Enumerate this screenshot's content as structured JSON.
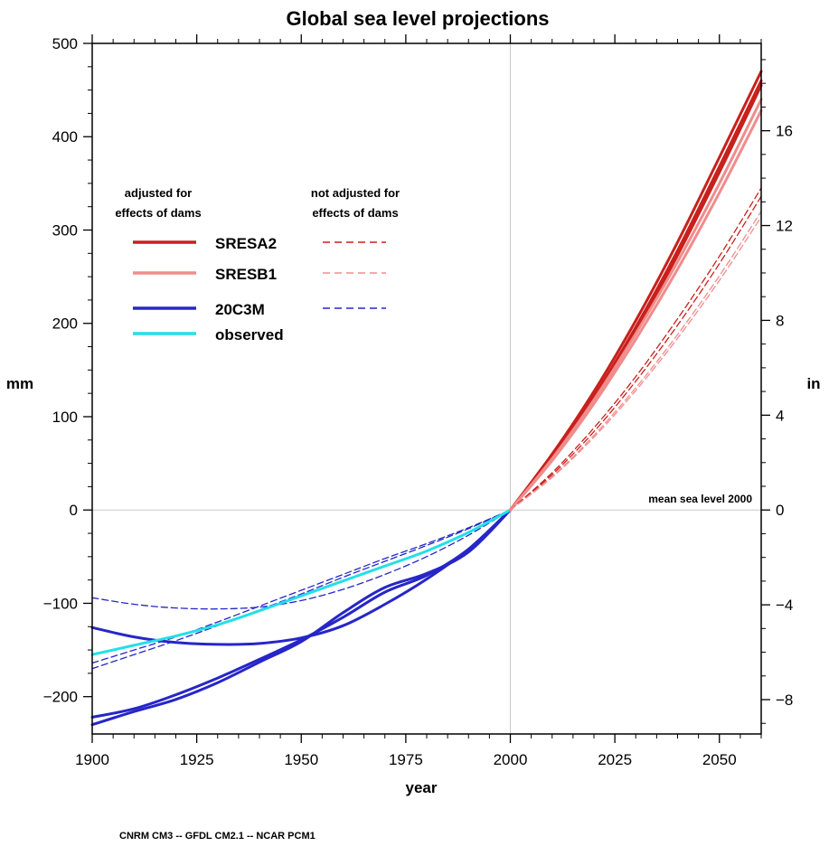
{
  "chart_data": {
    "type": "line",
    "title": "Global sea level projections",
    "xlabel": "year",
    "ylabel_left": "mm",
    "ylabel_right": "in",
    "xlim": [
      1900,
      2060
    ],
    "ylim": [
      -240,
      500
    ],
    "x_ticks": [
      1900,
      1925,
      1950,
      1975,
      2000,
      2025,
      2050
    ],
    "y_ticks": [
      -200,
      -100,
      0,
      100,
      200,
      300,
      400,
      500
    ],
    "y_ticks_labels": [
      "−200",
      "−100",
      "0",
      "100",
      "200",
      "300",
      "400",
      "500"
    ],
    "y2_ticks": [
      -8,
      -4,
      0,
      4,
      8,
      12,
      16
    ],
    "y2_ticks_labels": [
      "−8",
      "−4",
      "0",
      "4",
      "8",
      "12",
      "16"
    ],
    "grid": false,
    "reference_lines": [
      {
        "axis": "x",
        "value": 2000
      },
      {
        "axis": "y",
        "value": 0
      }
    ],
    "annotation": "mean sea level 2000",
    "legend": {
      "placement": "top-left",
      "heading_solid": [
        "adjusted for",
        "effects of dams"
      ],
      "heading_dashed": [
        "not adjusted for",
        "effects of dams"
      ],
      "entries": [
        {
          "label": "SRESA2",
          "color": "#c8201c",
          "solid": true,
          "dashed": true
        },
        {
          "label": "SRESB1",
          "color": "#f08c8c",
          "solid": true,
          "dashed": true
        },
        {
          "label": "20C3M",
          "color": "#2626c8",
          "solid": true,
          "dashed": true
        },
        {
          "label": "observed",
          "color": "#22e0e8",
          "solid": true,
          "dashed": false
        }
      ]
    },
    "series": [
      {
        "name": "20C3M",
        "style": "solid",
        "color": "#2626c8",
        "x": [
          1900,
          1910,
          1920,
          1930,
          1940,
          1950,
          1960,
          1970,
          1980,
          1990,
          2000
        ],
        "y": [
          -126,
          -136,
          -142,
          -144,
          -143,
          -137,
          -124,
          -101,
          -74,
          -42,
          0
        ]
      },
      {
        "name": "20C3M",
        "style": "solid",
        "color": "#2626c8",
        "x": [
          1900,
          1910,
          1920,
          1930,
          1940,
          1950,
          1960,
          1970,
          1980,
          1990,
          2000
        ],
        "y": [
          -222,
          -213,
          -198,
          -180,
          -160,
          -139,
          -115,
          -88,
          -70,
          -42,
          0
        ]
      },
      {
        "name": "20C3M",
        "style": "solid",
        "color": "#2626c8",
        "x": [
          1900,
          1910,
          1920,
          1930,
          1940,
          1950,
          1960,
          1970,
          1980,
          1990,
          2000
        ],
        "y": [
          -230,
          -216,
          -203,
          -185,
          -163,
          -141,
          -110,
          -83,
          -68,
          -45,
          0
        ]
      },
      {
        "name": "20C3M",
        "style": "dashed",
        "color": "#2626c8",
        "x": [
          1900,
          1910,
          1920,
          1930,
          1940,
          1950,
          1960,
          1970,
          1980,
          1990,
          2000
        ],
        "y": [
          -94,
          -101,
          -105,
          -106,
          -104,
          -97,
          -85,
          -69,
          -50,
          -27,
          0
        ]
      },
      {
        "name": "20C3M",
        "style": "dashed",
        "color": "#2626c8",
        "x": [
          1900,
          1910,
          1920,
          1930,
          1940,
          1950,
          1960,
          1970,
          1980,
          1990,
          2000
        ],
        "y": [
          -164,
          -150,
          -136,
          -120,
          -103,
          -86,
          -69,
          -52,
          -36,
          -19,
          0
        ]
      },
      {
        "name": "20C3M",
        "style": "dashed",
        "color": "#2626c8",
        "x": [
          1900,
          1910,
          1920,
          1930,
          1940,
          1950,
          1960,
          1970,
          1980,
          1990,
          2000
        ],
        "y": [
          -170,
          -155,
          -140,
          -124,
          -107,
          -90,
          -72,
          -55,
          -38,
          -20,
          0
        ]
      },
      {
        "name": "observed",
        "style": "solid",
        "color": "#22e0e8",
        "x": [
          1900,
          1910,
          1920,
          1930,
          1940,
          1950,
          1960,
          1970,
          1980,
          1990,
          2000
        ],
        "y": [
          -155,
          -145,
          -135,
          -123,
          -108,
          -92,
          -76,
          -60,
          -44,
          -24,
          0
        ]
      },
      {
        "name": "SRESA2",
        "style": "solid",
        "color": "#c8201c",
        "x": [
          2000,
          2010,
          2020,
          2030,
          2040,
          2050,
          2060
        ],
        "y": [
          0,
          60,
          127,
          203,
          287,
          378,
          470
        ]
      },
      {
        "name": "SRESA2",
        "style": "solid",
        "color": "#c8201c",
        "x": [
          2000,
          2010,
          2020,
          2030,
          2040,
          2050,
          2060
        ],
        "y": [
          0,
          57,
          122,
          196,
          278,
          368,
          460
        ]
      },
      {
        "name": "SRESA2",
        "style": "solid",
        "color": "#c8201c",
        "x": [
          2000,
          2010,
          2020,
          2030,
          2040,
          2050,
          2060
        ],
        "y": [
          0,
          55,
          119,
          192,
          273,
          362,
          455
        ]
      },
      {
        "name": "SRESB1",
        "style": "solid",
        "color": "#f08c8c",
        "x": [
          2000,
          2010,
          2020,
          2030,
          2040,
          2050,
          2060
        ],
        "y": [
          0,
          55,
          118,
          189,
          266,
          350,
          440
        ]
      },
      {
        "name": "SRESB1",
        "style": "solid",
        "color": "#f08c8c",
        "x": [
          2000,
          2010,
          2020,
          2030,
          2040,
          2050,
          2060
        ],
        "y": [
          0,
          53,
          114,
          183,
          258,
          340,
          428
        ]
      },
      {
        "name": "SRESA2",
        "style": "dashed",
        "color": "#c8201c",
        "x": [
          2000,
          2010,
          2020,
          2030,
          2040,
          2050,
          2060
        ],
        "y": [
          0,
          40,
          88,
          143,
          205,
          272,
          345
        ]
      },
      {
        "name": "SRESA2",
        "style": "dashed",
        "color": "#c8201c",
        "x": [
          2000,
          2010,
          2020,
          2030,
          2040,
          2050,
          2060
        ],
        "y": [
          0,
          38,
          84,
          138,
          198,
          264,
          336
        ]
      },
      {
        "name": "SRESB1",
        "style": "dashed",
        "color": "#f08c8c",
        "x": [
          2000,
          2010,
          2020,
          2030,
          2040,
          2050,
          2060
        ],
        "y": [
          0,
          36,
          80,
          131,
          188,
          251,
          320
        ]
      },
      {
        "name": "SRESB1",
        "style": "dashed",
        "color": "#f08c8c",
        "x": [
          2000,
          2010,
          2020,
          2030,
          2040,
          2050,
          2060
        ],
        "y": [
          0,
          35,
          78,
          128,
          184,
          246,
          314
        ]
      }
    ],
    "footer": "CNRM CM3 -- GFDL CM2.1 -- NCAR PCM1"
  }
}
